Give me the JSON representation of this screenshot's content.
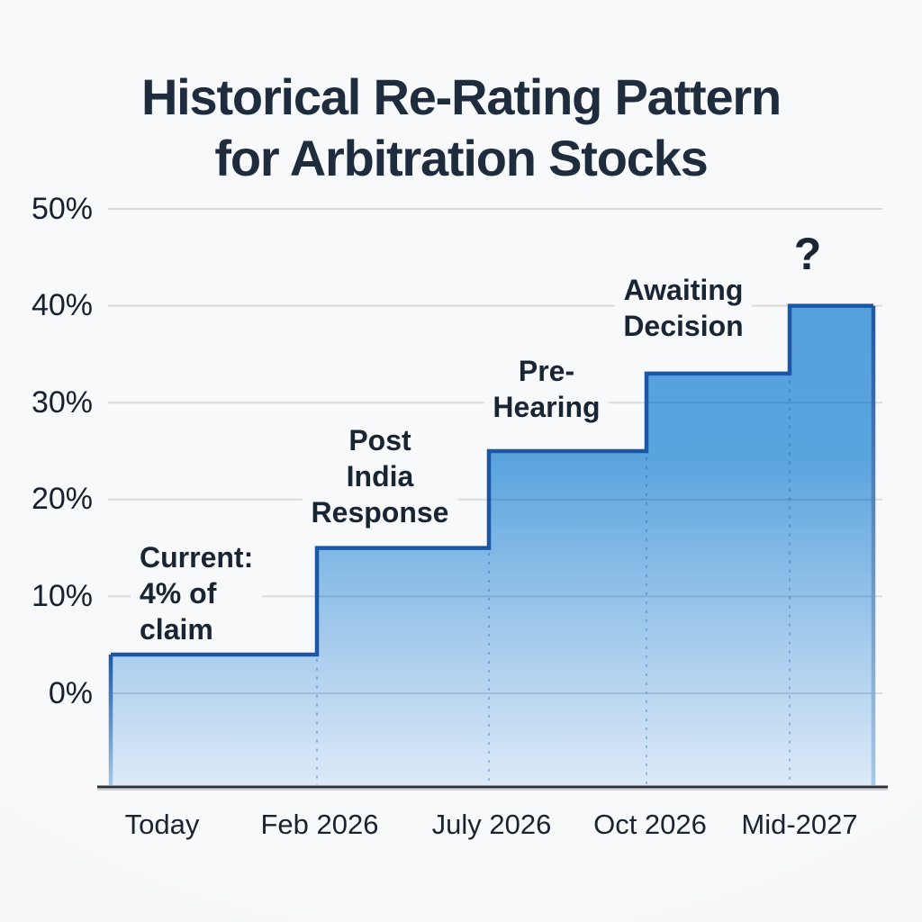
{
  "title": "Historical Re-Rating Pattern\nfor Arbitration Stocks",
  "chart_data": {
    "type": "area",
    "subtype": "step",
    "title": "Historical Re-Rating Pattern for Arbitration Stocks",
    "categories": [
      "Today",
      "Feb 2026",
      "July 2026",
      "Oct 2026",
      "Mid-2027"
    ],
    "values": [
      4,
      15,
      25,
      33,
      40
    ],
    "unit": "%",
    "xlabel": "",
    "ylabel": "",
    "ylim": [
      0,
      50
    ],
    "yticks_display": [
      50,
      40,
      30,
      20,
      10,
      0
    ],
    "ytick_labels": [
      "50%",
      "40%",
      "30%",
      "20%",
      "10%",
      "0%"
    ],
    "grid": "horizontal",
    "legend": "none",
    "stage_labels": [
      "Current: 4% of claim",
      "Post India Response",
      "Pre-Hearing",
      "Awaiting Decision",
      "?"
    ],
    "annotations": [
      {
        "text": "Current:\n4% of\nclaim"
      },
      {
        "text": "Post\nIndia\nResponse"
      },
      {
        "text": "Pre-\nHearing"
      },
      {
        "text": "Awaiting\nDecision"
      },
      {
        "text": "?"
      }
    ],
    "colors": {
      "area_top": "#54a0dc",
      "area_mid": "#5aa4de",
      "area_fade": "#a5cbec",
      "area_bottom": "#ddeaf8",
      "outline": "#1b57a4",
      "edge_fade": "#a6c8e7",
      "grid": "#d8dbde",
      "axis": "#2a3038",
      "title_text": "#1e2c3e",
      "axis_text": "#16202e",
      "annotation_text": "#1a2533",
      "background": "#f7f8f9"
    }
  }
}
